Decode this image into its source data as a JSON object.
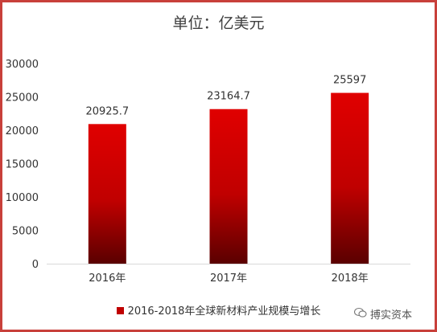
{
  "chart_data": {
    "type": "bar",
    "title": "单位：亿美元",
    "categories": [
      "2016年",
      "2017年",
      "2018年"
    ],
    "series": [
      {
        "name": "2016-2018年全球新材料产业规模与增长",
        "values": [
          20925.7,
          23164.7,
          25597
        ]
      }
    ],
    "data_labels": [
      "20925.7",
      "23164.7",
      "25597"
    ],
    "ylim": [
      0,
      30000
    ],
    "yticks": [
      0,
      5000,
      10000,
      15000,
      20000,
      25000,
      30000
    ],
    "xlabel": "",
    "ylabel": "",
    "grid": false,
    "legend": "bottom",
    "colors": {
      "bar_top": "#e00000",
      "bar_bottom": "#5a0000",
      "border": "#c8403b"
    }
  },
  "watermark": {
    "icon": "wechat-icon",
    "text": "搏实资本"
  }
}
